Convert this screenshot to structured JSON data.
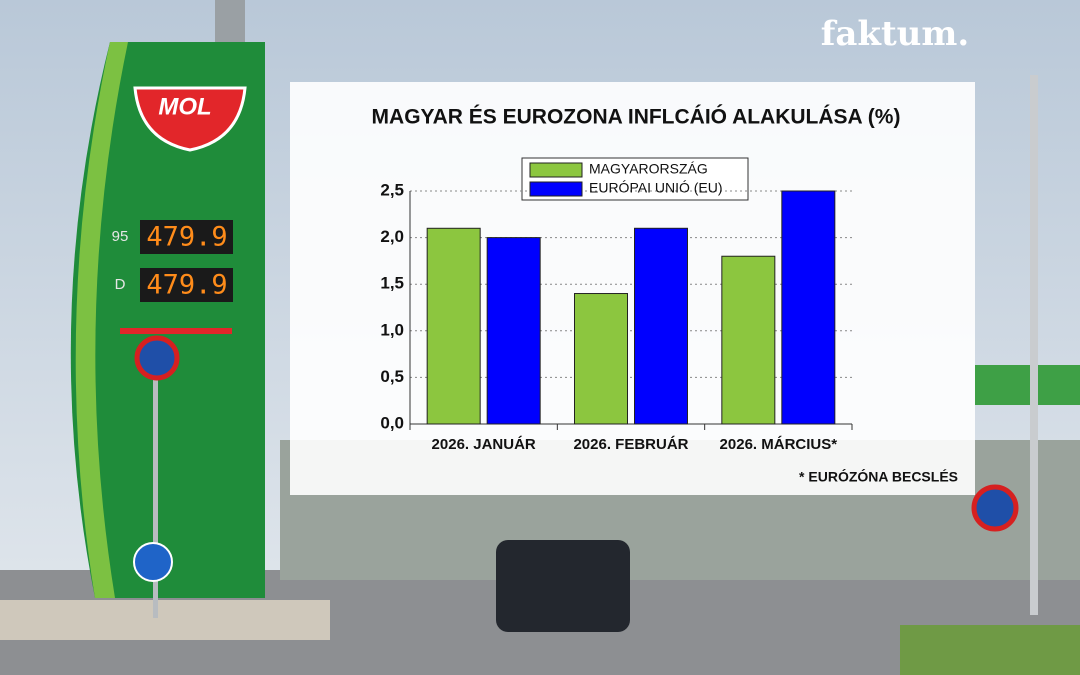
{
  "chart_data": {
    "type": "bar",
    "title": "MAGYAR ÉS EUROZONA INFLCÁIÓ ALAKULÁSA (%)",
    "categories": [
      "2026. JANUÁR",
      "2026. FEBRUÁR",
      "2026. MÁRCIUS*"
    ],
    "series": [
      {
        "name": "MAGYARORSZÁG",
        "color": "#8cc63f",
        "values": [
          2.1,
          1.4,
          1.8
        ]
      },
      {
        "name": "EURÓPAI UNIÓ (EU)",
        "color": "#0000ff",
        "values": [
          2.0,
          2.1,
          2.5
        ]
      }
    ],
    "ylim": [
      0,
      2.5
    ],
    "yticks": [
      {
        "value": 0,
        "label": "0,0"
      },
      {
        "value": 0.5,
        "label": "0,5"
      },
      {
        "value": 1,
        "label": "1,0"
      },
      {
        "value": 1.5,
        "label": "1,5"
      },
      {
        "value": 2,
        "label": "2,0"
      },
      {
        "value": 2.5,
        "label": "2,5"
      }
    ],
    "grid": true,
    "footnote": "*  EURÓZÓNA BECSLÉS"
  },
  "logo": "faktum.",
  "sign": {
    "brand": "MOL",
    "rows": [
      {
        "fuel": "95",
        "price": "479.9"
      },
      {
        "fuel": "D",
        "price": "479.9"
      }
    ]
  }
}
